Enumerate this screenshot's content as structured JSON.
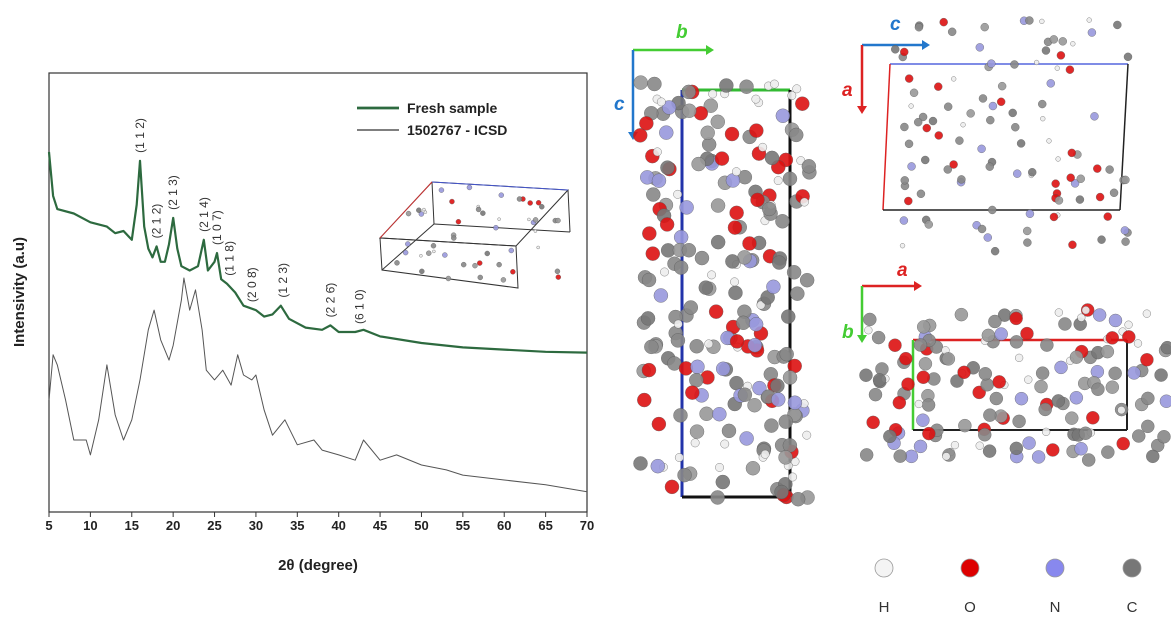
{
  "chart_data": {
    "type": "line",
    "xlabel": "2θ (degree)",
    "ylabel": "Intensivity (a.u)",
    "xlim": [
      5,
      70
    ],
    "xticks": [
      5,
      10,
      15,
      20,
      25,
      30,
      35,
      40,
      45,
      50,
      55,
      60,
      65,
      70
    ],
    "ylim": [
      0,
      100
    ],
    "legend": "upper right",
    "series": [
      {
        "name": "Fresh sample",
        "color": "#2d6a3f",
        "width": 2.2,
        "x": [
          5,
          5.5,
          6,
          8,
          10,
          12,
          13,
          14,
          15,
          15.6,
          16,
          16.5,
          17,
          17.5,
          18,
          18.5,
          19,
          19.5,
          20,
          20.5,
          21,
          22,
          23,
          23.7,
          24.2,
          25,
          25.3,
          25.8,
          26.5,
          27.5,
          28.5,
          30,
          31,
          32,
          33,
          34,
          36,
          38,
          39,
          40,
          42,
          43,
          45,
          50,
          55,
          60,
          65,
          70
        ],
        "values": [
          82,
          72,
          69,
          68,
          66,
          65,
          63.5,
          64,
          62,
          70,
          80,
          65,
          60,
          58,
          60.5,
          57,
          57,
          61,
          67,
          60,
          56,
          55,
          56,
          62,
          55,
          57,
          59,
          53,
          52,
          50,
          47,
          46,
          44.5,
          45,
          47,
          44,
          42,
          41.5,
          42.5,
          41,
          41,
          41.5,
          40,
          38.5,
          37.5,
          37,
          36.5,
          36.3
        ]
      },
      {
        "name": "1502767 - ICSD",
        "color": "#555555",
        "width": 1,
        "x": [
          5,
          5.5,
          6,
          7,
          8,
          9.5,
          10,
          11,
          12,
          13,
          14,
          15,
          16,
          17,
          17.7,
          18.5,
          19.5,
          20,
          21,
          21.3,
          22,
          22.7,
          23.5,
          24,
          25,
          26,
          27,
          27.8,
          28.5,
          29.5,
          30,
          31,
          32,
          33.5,
          35,
          37,
          38,
          40,
          42,
          43,
          45,
          47,
          50,
          53,
          55,
          60,
          65,
          70
        ],
        "values": [
          25.5,
          35.8,
          33.5,
          25.5,
          16.4,
          16.4,
          13.0,
          21.0,
          33.5,
          22.1,
          16.4,
          21.0,
          30.1,
          41.5,
          46.0,
          39.2,
          34.6,
          38.0,
          48.3,
          53.3,
          46.0,
          50.6,
          41.5,
          32.3,
          30.1,
          32.3,
          28.9,
          35.8,
          31.2,
          30.1,
          31.2,
          23.2,
          17.5,
          21.0,
          15.3,
          16.4,
          14.1,
          13.0,
          11.8,
          16.4,
          11.8,
          13.0,
          10.7,
          9.6,
          8.4,
          7.3,
          6.2,
          4.6
        ]
      }
    ],
    "annotations": [
      {
        "text": "(1 1 2)",
        "x": 16
      },
      {
        "text": "(2 1 2)",
        "x": 18
      },
      {
        "text": "(2 1 3)",
        "x": 20
      },
      {
        "text": "(2 1 4)",
        "x": 23.7
      },
      {
        "text": "(1 0 7)",
        "x": 25.3
      },
      {
        "text": "(1 1 8)",
        "x": 26.8
      },
      {
        "text": "(2 0 8̄)",
        "x": 29.5
      },
      {
        "text": "(1 2 3)",
        "x": 33.3
      },
      {
        "text": "(2 2 6̄)",
        "x": 39
      },
      {
        "text": "(6 1 0)",
        "x": 42.5
      }
    ]
  },
  "structure_panels": [
    {
      "axes": [
        "b",
        "c"
      ]
    },
    {
      "axes": [
        "c",
        "a"
      ]
    },
    {
      "axes": [
        "a",
        "b"
      ]
    }
  ],
  "atom_legend": [
    "H",
    "O",
    "N",
    "C"
  ]
}
